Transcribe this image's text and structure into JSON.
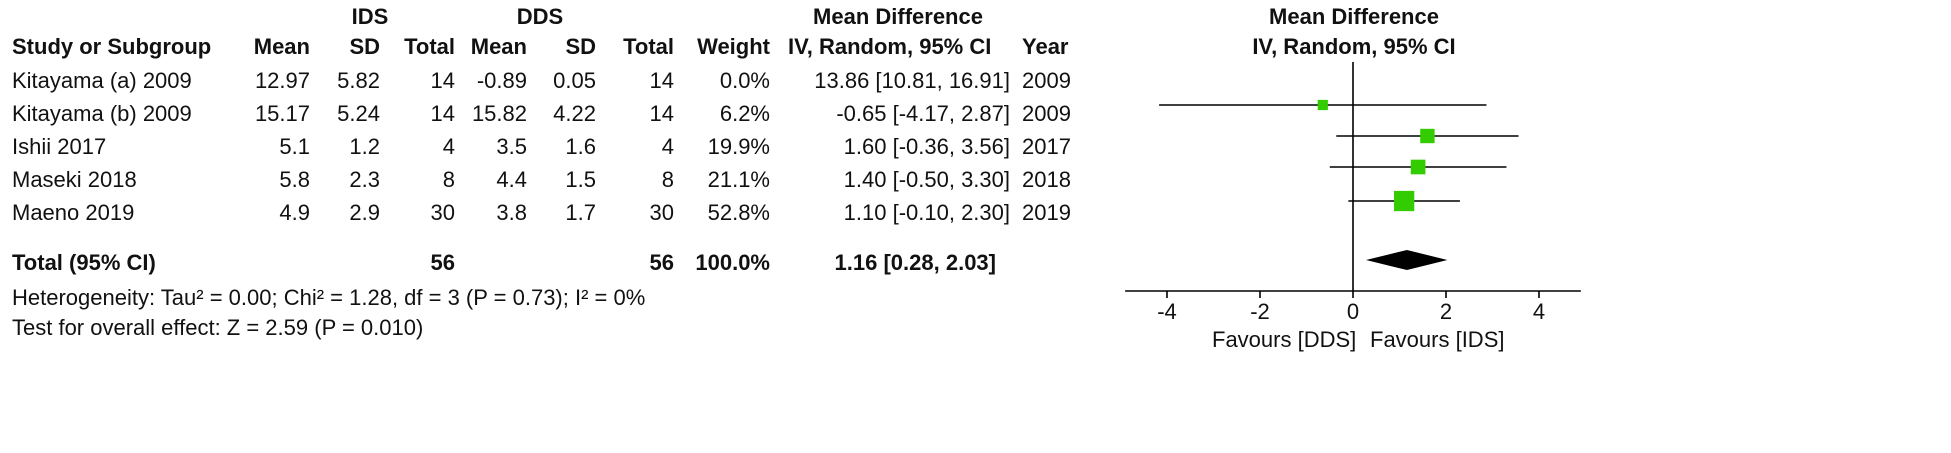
{
  "headers": {
    "group1": "IDS",
    "group2": "DDS",
    "md_title": "Mean Difference",
    "plot_title": "Mean Difference",
    "plot_subtitle": "IV, Random, 95% CI",
    "study": "Study or Subgroup",
    "mean1": "Mean",
    "sd1": "SD",
    "total1": "Total",
    "mean2": "Mean",
    "sd2": "SD",
    "total2": "Total",
    "weight": "Weight",
    "md_sub": "IV, Random, 95% CI",
    "year": "Year"
  },
  "rows": [
    {
      "study": "Kitayama (a) 2009",
      "mean1": "12.97",
      "sd1": "5.82",
      "n1": "14",
      "mean2": "-0.89",
      "sd2": "0.05",
      "n2": "14",
      "weight": "0.0%",
      "md": "13.86 [10.81, 16.91]",
      "year": "2009"
    },
    {
      "study": "Kitayama (b) 2009",
      "mean1": "15.17",
      "sd1": "5.24",
      "n1": "14",
      "mean2": "15.82",
      "sd2": "4.22",
      "n2": "14",
      "weight": "6.2%",
      "md": "-0.65 [-4.17, 2.87]",
      "year": "2009"
    },
    {
      "study": "Ishii 2017",
      "mean1": "5.1",
      "sd1": "1.2",
      "n1": "4",
      "mean2": "3.5",
      "sd2": "1.6",
      "n2": "4",
      "weight": "19.9%",
      "md": "1.60 [-0.36, 3.56]",
      "year": "2017"
    },
    {
      "study": "Maseki 2018",
      "mean1": "5.8",
      "sd1": "2.3",
      "n1": "8",
      "mean2": "4.4",
      "sd2": "1.5",
      "n2": "8",
      "weight": "21.1%",
      "md": "1.40 [-0.50, 3.30]",
      "year": "2018"
    },
    {
      "study": "Maeno 2019",
      "mean1": "4.9",
      "sd1": "2.9",
      "n1": "30",
      "mean2": "3.8",
      "sd2": "1.7",
      "n2": "30",
      "weight": "52.8%",
      "md": "1.10 [-0.10, 2.30]",
      "year": "2019"
    }
  ],
  "total": {
    "label": "Total (95% CI)",
    "n1": "56",
    "n2": "56",
    "weight": "100.0%",
    "md": "1.16 [0.28, 2.03]"
  },
  "heterogeneity": "Heterogeneity: Tau² = 0.00; Chi² = 1.28, df = 3 (P = 0.73); I² = 0%",
  "overall_effect": "Test for overall effect: Z = 2.59 (P = 0.010)",
  "colors": {
    "marker": "#33cc00",
    "diamond": "#000000",
    "line": "#000000"
  },
  "chart_data": {
    "type": "forest",
    "title": "Mean Difference",
    "subtitle": "IV, Random, 95% CI",
    "xlim": [
      -4.9,
      4.9
    ],
    "xticks": [
      -4,
      -2,
      0,
      2,
      4
    ],
    "xtick_labels": [
      "-4",
      "-2",
      "0",
      "2",
      "4"
    ],
    "favours_left": "Favours [DDS]",
    "favours_right": "Favours [IDS]",
    "studies": [
      {
        "name": "Kitayama (a) 2009",
        "estimate": 13.86,
        "lower": 10.81,
        "upper": 16.91,
        "weight": 0.0
      },
      {
        "name": "Kitayama (b) 2009",
        "estimate": -0.65,
        "lower": -4.17,
        "upper": 2.87,
        "weight": 6.2
      },
      {
        "name": "Ishii 2017",
        "estimate": 1.6,
        "lower": -0.36,
        "upper": 3.56,
        "weight": 19.9
      },
      {
        "name": "Maseki 2018",
        "estimate": 1.4,
        "lower": -0.5,
        "upper": 3.3,
        "weight": 21.1
      },
      {
        "name": "Maeno 2019",
        "estimate": 1.1,
        "lower": -0.1,
        "upper": 2.3,
        "weight": 52.8
      }
    ],
    "pooled": {
      "estimate": 1.16,
      "lower": 0.28,
      "upper": 2.03
    }
  }
}
